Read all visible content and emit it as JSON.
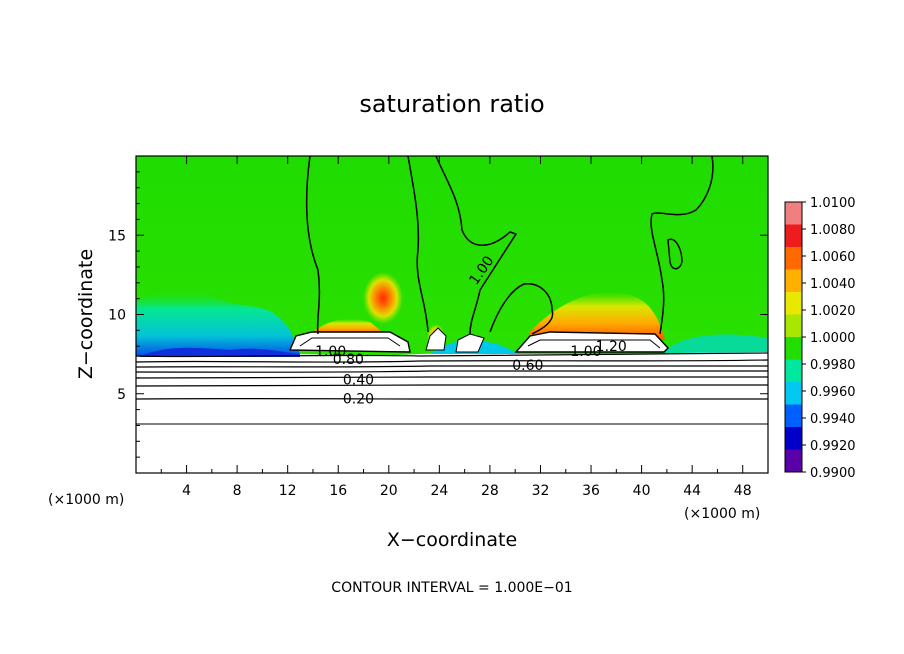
{
  "chart_data": {
    "type": "heatmap",
    "title": "saturation ratio",
    "xlabel": "X−coordinate",
    "ylabel": "Z−coordinate",
    "x_unit": "(×1000 m)",
    "z_unit": "(×1000 m)",
    "xlim": [
      0,
      50
    ],
    "ylim": [
      0,
      20
    ],
    "x_ticks": [
      "4",
      "8",
      "12",
      "16",
      "20",
      "24",
      "28",
      "32",
      "36",
      "40",
      "44",
      "48"
    ],
    "y_ticks": [
      "5",
      "10",
      "15"
    ],
    "x_tick_values": [
      4,
      8,
      12,
      16,
      20,
      24,
      28,
      32,
      36,
      40,
      44,
      48
    ],
    "y_tick_values": [
      5,
      10,
      15
    ],
    "colorbar": {
      "labels": [
        "1.0100",
        "1.0080",
        "1.0060",
        "1.0040",
        "1.0020",
        "1.0000",
        "0.9980",
        "0.9960",
        "0.9940",
        "0.9920",
        "0.9900"
      ],
      "colors": [
        "#f08080",
        "#ee1c1c",
        "#ff6a00",
        "#ffb000",
        "#e8e800",
        "#a8e800",
        "#22dd00",
        "#00e8a0",
        "#00c8f0",
        "#0060ff",
        "#0000c8",
        "#5a00a8"
      ]
    },
    "contour_labels": [
      {
        "text": "1.00",
        "x": 27.3,
        "z": 12.8
      },
      {
        "text": "1.00",
        "x": 15.4,
        "z": 7.7
      },
      {
        "text": "0.80",
        "x": 16.8,
        "z": 7.2
      },
      {
        "text": "0.60",
        "x": 31.0,
        "z": 6.8
      },
      {
        "text": "0.40",
        "x": 17.6,
        "z": 5.9
      },
      {
        "text": "0.20",
        "x": 17.6,
        "z": 4.7
      },
      {
        "text": "1.00",
        "x": 35.6,
        "z": 7.7
      },
      {
        "text": "1.20",
        "x": 37.6,
        "z": 8.0
      }
    ],
    "contour_interval_text": "CONTOUR INTERVAL = 1.000E−01"
  }
}
